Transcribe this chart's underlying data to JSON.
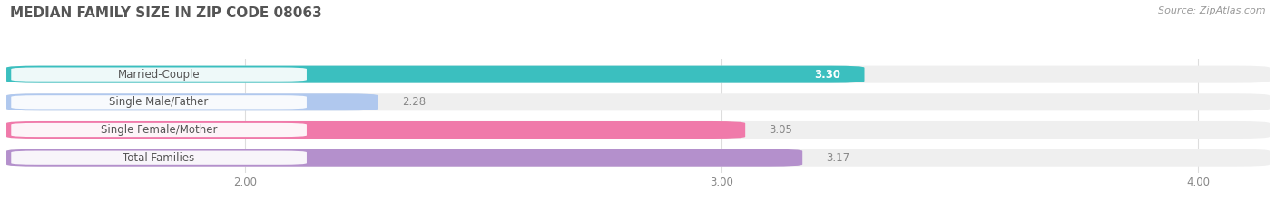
{
  "title": "MEDIAN FAMILY SIZE IN ZIP CODE 08063",
  "source": "Source: ZipAtlas.com",
  "categories": [
    "Married-Couple",
    "Single Male/Father",
    "Single Female/Mother",
    "Total Families"
  ],
  "values": [
    3.3,
    2.28,
    3.05,
    3.17
  ],
  "colors": [
    "#3bbfbf",
    "#b0c8ee",
    "#f07aaa",
    "#b490cc"
  ],
  "xlim_left": 1.5,
  "xlim_right": 4.15,
  "xticks": [
    2.0,
    3.0,
    4.0
  ],
  "xtick_labels": [
    "2.00",
    "3.00",
    "4.00"
  ],
  "bar_height": 0.62,
  "bg_track_color": "#efefef",
  "label_pill_color": "#ffffff",
  "label_text_color": "#555555",
  "value_inside_color": "#ffffff",
  "value_outside_color": "#888888",
  "title_color": "#555555",
  "source_color": "#999999",
  "background_color": "#ffffff",
  "grid_color": "#dddddd"
}
